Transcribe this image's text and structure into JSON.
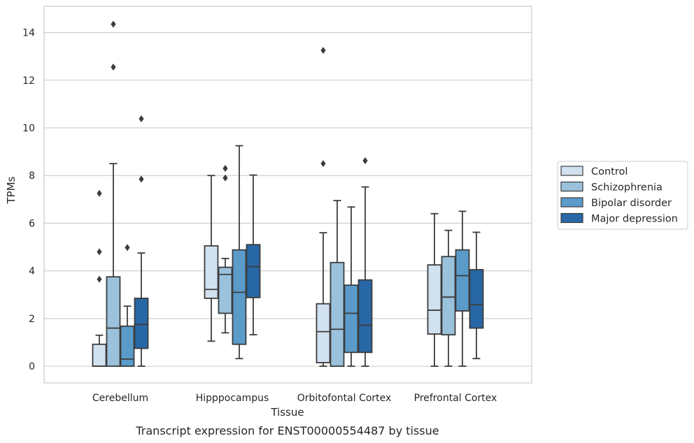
{
  "chart_data": {
    "type": "boxplot",
    "caption": "Transcript expression for ENST00000554487 by tissue",
    "xlabel": "Tissue",
    "ylabel": "TPMs",
    "ylim": [
      -0.7,
      15.1
    ],
    "yticks": [
      0,
      2,
      4,
      6,
      8,
      10,
      12,
      14
    ],
    "grid": "horizontal",
    "legend_position": "right",
    "categories": [
      "Cerebellum",
      "Hipppocampus",
      "Orbitofontal Cortex",
      "Prefrontal Cortex"
    ],
    "series": [
      {
        "name": "Control",
        "color": "#d1e1f0",
        "boxes": [
          {
            "whisker_low": 0,
            "q1": 0,
            "median": 0,
            "q3": 0.92,
            "whisker_high": 1.3,
            "outliers": [
              3.65,
              4.8,
              7.25
            ]
          },
          {
            "whisker_low": 1.05,
            "q1": 2.85,
            "median": 3.22,
            "q3": 5.05,
            "whisker_high": 8.0,
            "outliers": []
          },
          {
            "whisker_low": 0,
            "q1": 0.15,
            "median": 1.45,
            "q3": 2.62,
            "whisker_high": 5.6,
            "outliers": [
              8.5,
              13.25
            ]
          },
          {
            "whisker_low": 0,
            "q1": 1.35,
            "median": 2.35,
            "q3": 4.25,
            "whisker_high": 6.4,
            "outliers": []
          }
        ]
      },
      {
        "name": "Schizophrenia",
        "color": "#9ac2dc",
        "boxes": [
          {
            "whisker_low": 0,
            "q1": 0,
            "median": 1.6,
            "q3": 3.75,
            "whisker_high": 8.5,
            "outliers": [
              12.55,
              14.35
            ]
          },
          {
            "whisker_low": 1.4,
            "q1": 2.22,
            "median": 3.85,
            "q3": 4.15,
            "whisker_high": 4.52,
            "outliers": [
              7.9,
              8.3
            ]
          },
          {
            "whisker_low": 0,
            "q1": 0,
            "median": 1.55,
            "q3": 4.35,
            "whisker_high": 6.95,
            "outliers": []
          },
          {
            "whisker_low": 0,
            "q1": 1.32,
            "median": 2.9,
            "q3": 4.6,
            "whisker_high": 5.7,
            "outliers": []
          }
        ]
      },
      {
        "name": "Bipolar disorder",
        "color": "#5a9bc9",
        "boxes": [
          {
            "whisker_low": 0,
            "q1": 0,
            "median": 0.3,
            "q3": 1.68,
            "whisker_high": 2.52,
            "outliers": [
              4.98
            ]
          },
          {
            "whisker_low": 0.32,
            "q1": 0.92,
            "median": 3.1,
            "q3": 4.88,
            "whisker_high": 9.25,
            "outliers": []
          },
          {
            "whisker_low": 0,
            "q1": 0.58,
            "median": 2.22,
            "q3": 3.4,
            "whisker_high": 6.68,
            "outliers": []
          },
          {
            "whisker_low": 0,
            "q1": 2.32,
            "median": 3.8,
            "q3": 4.88,
            "whisker_high": 6.5,
            "outliers": []
          }
        ]
      },
      {
        "name": "Major depression",
        "color": "#2867a6",
        "boxes": [
          {
            "whisker_low": 0,
            "q1": 0.75,
            "median": 1.75,
            "q3": 2.85,
            "whisker_high": 4.75,
            "outliers": [
              7.85,
              10.38
            ]
          },
          {
            "whisker_low": 1.32,
            "q1": 2.88,
            "median": 4.18,
            "q3": 5.1,
            "whisker_high": 8.02,
            "outliers": []
          },
          {
            "whisker_low": 0,
            "q1": 0.58,
            "median": 1.72,
            "q3": 3.62,
            "whisker_high": 7.52,
            "outliers": [
              8.62
            ]
          },
          {
            "whisker_low": 0.32,
            "q1": 1.6,
            "median": 2.58,
            "q3": 4.05,
            "whisker_high": 5.62,
            "outliers": []
          }
        ]
      }
    ]
  }
}
